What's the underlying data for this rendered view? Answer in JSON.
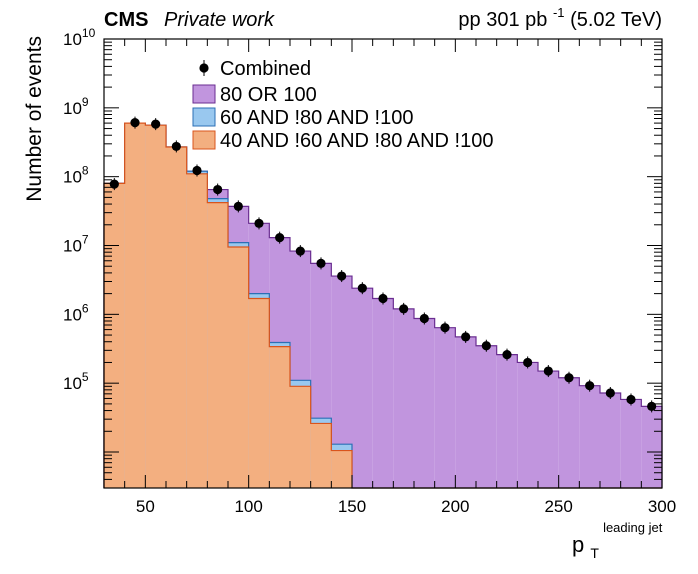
{
  "header": {
    "experiment": "CMS",
    "status": "Private work",
    "lumi_prefix": "pp 301 pb",
    "lumi_exp": "-1",
    "lumi_suffix": " (5.02 TeV)"
  },
  "colors": {
    "c80": "#c195de",
    "c80_edge": "#6a2d91",
    "c60": "#99c8ef",
    "c60_edge": "#2c6fb5",
    "c40": "#f3af80",
    "c40_edge": "#d9541c",
    "points": "#000000"
  },
  "chart_data": {
    "type": "histogram",
    "title": "",
    "xlabel": "p",
    "xlabel_sub": "T",
    "xlabel_sup": "leading jet",
    "ylabel": "Number of events",
    "xlim": [
      30,
      300
    ],
    "ylim": [
      3000,
      10000000000
    ],
    "ylog": true,
    "y_tick_bases": [
      "10",
      "10",
      "10",
      "10",
      "10",
      "10"
    ],
    "y_tick_exps": [
      "5",
      "6",
      "7",
      "8",
      "9",
      "10"
    ],
    "y_tick_values": [
      100000,
      1000000,
      10000000,
      100000000,
      1000000000,
      10000000000
    ],
    "x_tick_labels": [
      "50",
      "100",
      "150",
      "200",
      "250",
      "300"
    ],
    "x_tick_values": [
      50,
      100,
      150,
      200,
      250,
      300
    ],
    "bin_edges": [
      30,
      40,
      50,
      60,
      70,
      80,
      90,
      100,
      110,
      120,
      130,
      140,
      150,
      160,
      170,
      180,
      190,
      200,
      210,
      220,
      230,
      240,
      250,
      260,
      270,
      280,
      290,
      300
    ],
    "legend": {
      "position": "top-left",
      "entries": [
        "Combined",
        "80 OR 100",
        "60 AND !80 AND !100",
        "40 AND !60 AND !80 AND !100"
      ]
    },
    "series": [
      {
        "name": "80 OR 100",
        "style": "stacked-fill",
        "values": [
          80000000,
          600000000,
          560000000,
          270000000,
          120000000,
          65000000,
          37000000,
          21000000,
          13000000,
          8300000,
          5500000,
          3600000,
          2400000,
          1700000,
          1200000,
          870000,
          640000,
          470000,
          350000,
          260000,
          200000,
          150000,
          120000,
          92000,
          72000,
          58000,
          46000
        ]
      },
      {
        "name": "60 AND !80 AND !100",
        "style": "stacked-fill",
        "values": [
          80000000,
          600000000,
          560000000,
          270000000,
          120000000,
          48000000,
          11000000,
          2000000,
          390000,
          110000,
          31000,
          13000,
          0,
          0,
          0,
          0,
          0,
          0,
          0,
          0,
          0,
          0,
          0,
          0,
          0,
          0,
          0
        ]
      },
      {
        "name": "40 AND !60 AND !80 AND !100",
        "style": "stacked-fill",
        "values": [
          80000000,
          600000000,
          560000000,
          270000000,
          110000000,
          42000000,
          9500000,
          1700000,
          340000,
          90000,
          26000,
          10500,
          0,
          0,
          0,
          0,
          0,
          0,
          0,
          0,
          0,
          0,
          0,
          0,
          0,
          0,
          0
        ]
      },
      {
        "name": "Combined",
        "style": "points",
        "values": [
          78000000,
          610000000,
          580000000,
          275000000,
          123000000,
          65000000,
          37000000,
          21000000,
          13000000,
          8300000,
          5500000,
          3600000,
          2400000,
          1700000,
          1200000,
          870000,
          640000,
          470000,
          350000,
          260000,
          200000,
          150000,
          120000,
          92000,
          72000,
          58000,
          46000
        ]
      }
    ]
  }
}
